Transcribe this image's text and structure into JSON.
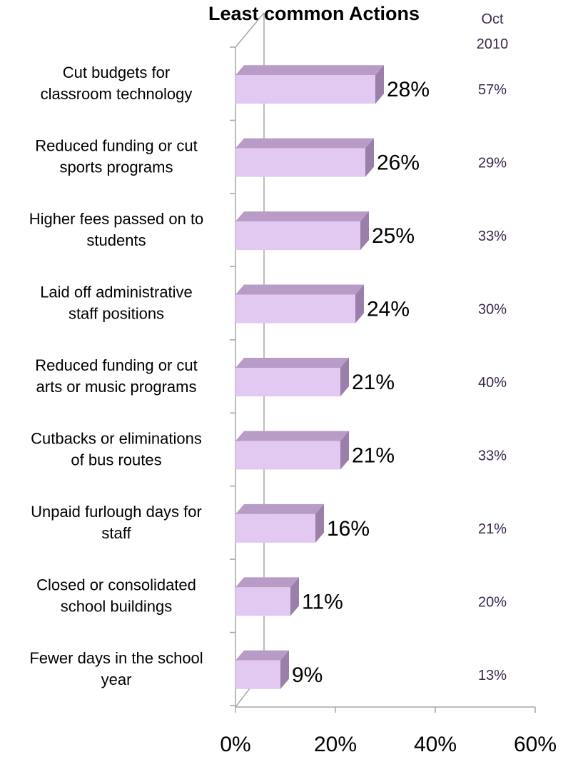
{
  "chart_data": {
    "type": "bar",
    "orientation": "horizontal",
    "title": "Least common Actions",
    "categories": [
      [
        "Cut budgets for",
        "classroom technology"
      ],
      [
        "Reduced funding or cut",
        "sports programs"
      ],
      [
        "Higher fees passed on to",
        "students"
      ],
      [
        "Laid off administrative",
        "staff positions"
      ],
      [
        "Reduced funding or cut",
        "arts or music programs"
      ],
      [
        "Cutbacks or eliminations",
        "of bus routes"
      ],
      [
        "Unpaid furlough days for",
        "staff"
      ],
      [
        "Closed or consolidated",
        "school buildings"
      ],
      [
        "Fewer days in the school",
        "year"
      ]
    ],
    "values": [
      28,
      26,
      25,
      24,
      21,
      21,
      16,
      11,
      9
    ],
    "value_labels": [
      "28%",
      "26%",
      "25%",
      "24%",
      "21%",
      "21%",
      "16%",
      "11%",
      "9%"
    ],
    "comparison": {
      "header": [
        "Oct",
        "2010"
      ],
      "values": [
        "57%",
        "29%",
        "33%",
        "30%",
        "40%",
        "33%",
        "21%",
        "20%",
        "13%"
      ]
    },
    "xlim": [
      0,
      60
    ],
    "xticks": [
      0,
      20,
      40,
      60
    ],
    "xtick_labels": [
      "0%",
      "20%",
      "40%",
      "60%"
    ],
    "grid": false,
    "legend": "none",
    "colors": {
      "bar_face": "#e2c9f1",
      "bar_top": "#b89bc6",
      "bar_side": "#9a7fa8",
      "axis": "#a6a6a6",
      "comparison_text": "#3c2850"
    }
  }
}
